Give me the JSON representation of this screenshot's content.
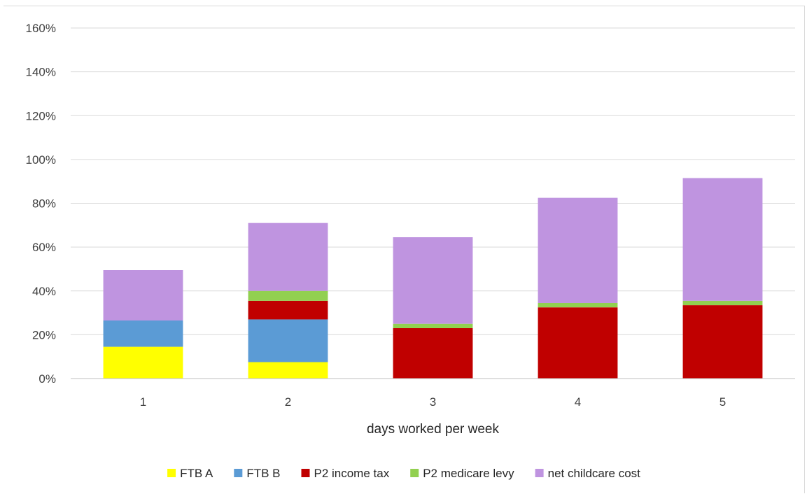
{
  "chart_data": {
    "type": "bar",
    "stacked": true,
    "title": "",
    "xlabel": "days worked per week",
    "ylabel": "",
    "categories": [
      "1",
      "2",
      "3",
      "4",
      "5"
    ],
    "ylim": [
      0,
      160
    ],
    "y_ticks": [
      0,
      20,
      40,
      60,
      80,
      100,
      120,
      140,
      160
    ],
    "y_tick_suffix": "%",
    "grid": true,
    "legend_position": "bottom",
    "series": [
      {
        "name": "FTB A",
        "color": "#ffff00",
        "values": [
          14.5,
          7.5,
          0,
          0,
          0
        ]
      },
      {
        "name": "FTB B",
        "color": "#5b9bd5",
        "values": [
          12,
          19.5,
          0,
          0,
          0
        ]
      },
      {
        "name": "P2 income tax",
        "color": "#c00000",
        "values": [
          0,
          8.5,
          23,
          32.5,
          33.5
        ]
      },
      {
        "name": "P2 medicare levy",
        "color": "#92d050",
        "values": [
          0,
          4.5,
          2,
          2,
          2
        ]
      },
      {
        "name": "net childcare cost",
        "color": "#bf94e0",
        "values": [
          23,
          31,
          39.5,
          48,
          56
        ]
      }
    ]
  }
}
